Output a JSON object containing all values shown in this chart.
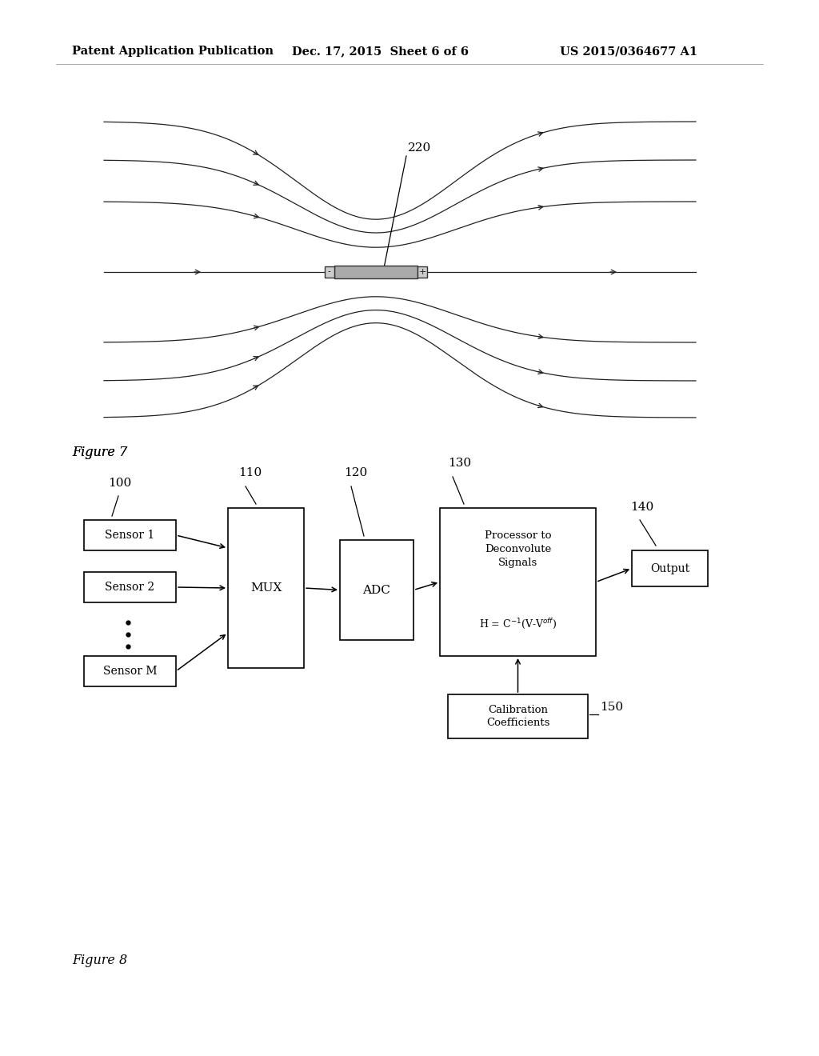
{
  "background_color": "#ffffff",
  "header_left": "Patent Application Publication",
  "header_center": "Dec. 17, 2015  Sheet 6 of 6",
  "header_right": "US 2015/0364677 A1",
  "header_fontsize": 10.5,
  "fig7_label": "Figure 7",
  "fig8_label": "Figure 8",
  "label_220": "220",
  "label_100": "100",
  "label_110": "110",
  "label_120": "120",
  "label_130": "130",
  "label_140": "140",
  "label_150": "150",
  "sensor1_text": "Sensor 1",
  "sensor2_text": "Sensor 2",
  "sensorm_text": "Sensor M",
  "mux_text": "MUX",
  "adc_text": "ADC",
  "output_text": "Output",
  "calib_text": "Calibration\nCoefficients",
  "line_color": "#000000",
  "box_edge_color": "#000000",
  "box_face_color": "#ffffff",
  "text_color": "#000000",
  "font_family": "DejaVu Serif"
}
